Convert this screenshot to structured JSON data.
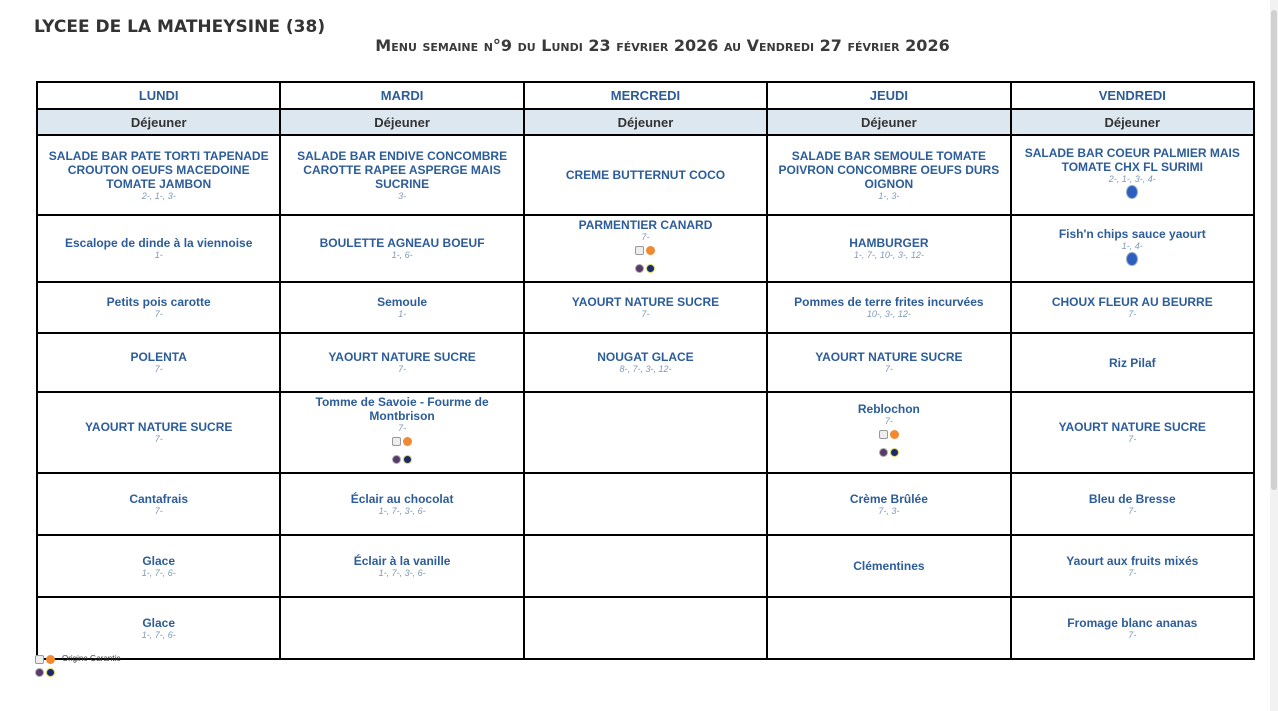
{
  "school": "LYCEE DE LA MATHEYSINE (38)",
  "title": "Menu semaine n°9 du Lundi 23 février 2026 au Vendredi 27 février 2026",
  "days": [
    "LUNDI",
    "MARDI",
    "MERCREDI",
    "JEUDI",
    "VENDREDI"
  ],
  "meal": "Déjeuner",
  "rows": [
    [
      {
        "n": "SALADE BAR PATE TORTI TAPENADE CROUTON OEUFS MACEDOINE TOMATE JAMBON",
        "a": "2-, 1-, 3-"
      },
      {
        "n": "SALADE BAR ENDIVE CONCOMBRE CAROTTE RAPEE ASPERGE MAIS SUCRINE",
        "a": "3-"
      },
      {
        "n": "CREME BUTTERNUT COCO",
        "a": ""
      },
      {
        "n": "SALADE BAR SEMOULE TOMATE POIVRON CONCOMBRE OEUFS DURS OIGNON",
        "a": "1-, 3-"
      },
      {
        "n": "SALADE BAR COEUR PALMIER MAIS TOMATE CHX FL SURIMI",
        "a": "2-, 1-, 3-, 4-",
        "i": "msc"
      }
    ],
    [
      {
        "n": "Escalope de dinde à la viennoise",
        "a": "1-"
      },
      {
        "n": "BOULETTE AGNEAU BOEUF",
        "a": "1-, 6-"
      },
      {
        "n": "PARMENTIER CANARD",
        "a": "7-",
        "i": "origin"
      },
      {
        "n": "HAMBURGER",
        "a": "1-, 7-, 10-, 3-, 12-"
      },
      {
        "n": "Fish'n chips sauce yaourt",
        "a": "1-, 4-",
        "i": "msc"
      }
    ],
    [
      {
        "n": "Petits pois carotte",
        "a": "7-"
      },
      {
        "n": "Semoule",
        "a": "1-"
      },
      {
        "n": "YAOURT NATURE SUCRE",
        "a": "7-"
      },
      {
        "n": "Pommes de terre frites incurvées",
        "a": "10-, 3-, 12-"
      },
      {
        "n": "CHOUX FLEUR AU BEURRE",
        "a": "7-"
      }
    ],
    [
      {
        "n": "POLENTA",
        "a": "7-"
      },
      {
        "n": "YAOURT NATURE SUCRE",
        "a": "7-"
      },
      {
        "n": "NOUGAT GLACE",
        "a": "8-, 7-, 3-, 12-"
      },
      {
        "n": "YAOURT NATURE SUCRE",
        "a": "7-"
      },
      {
        "n": "Riz Pilaf",
        "a": ""
      }
    ],
    [
      {
        "n": "YAOURT NATURE SUCRE",
        "a": "7-"
      },
      {
        "n": "Tomme de Savoie - Fourme de Montbrison",
        "a": "7-",
        "i": "origin"
      },
      {
        "n": "",
        "a": ""
      },
      {
        "n": "Reblochon",
        "a": "7-",
        "i": "origin"
      },
      {
        "n": "YAOURT NATURE SUCRE",
        "a": "7-"
      }
    ],
    [
      {
        "n": "Cantafrais",
        "a": "7-"
      },
      {
        "n": "Éclair au chocolat",
        "a": "1-, 7-, 3-, 6-"
      },
      {
        "n": "",
        "a": ""
      },
      {
        "n": "Crème Brûlée",
        "a": "7-, 3-"
      },
      {
        "n": "Bleu de Bresse",
        "a": "7-"
      }
    ],
    [
      {
        "n": "Glace",
        "a": "1-, 7-, 6-"
      },
      {
        "n": "Éclair à la vanille",
        "a": "1-, 7-, 3-, 6-"
      },
      {
        "n": "",
        "a": ""
      },
      {
        "n": "Clémentines",
        "a": ""
      },
      {
        "n": "Yaourt aux fruits mixés",
        "a": "7-"
      }
    ],
    [
      {
        "n": "Glace",
        "a": "1-, 7-, 6-"
      },
      {
        "n": "",
        "a": ""
      },
      {
        "n": "",
        "a": ""
      },
      {
        "n": "",
        "a": ""
      },
      {
        "n": "Fromage blanc ananas",
        "a": "7-"
      }
    ]
  ],
  "legend": {
    "label": "Origine Garantie",
    "icon": "origin-garantie-icon"
  }
}
